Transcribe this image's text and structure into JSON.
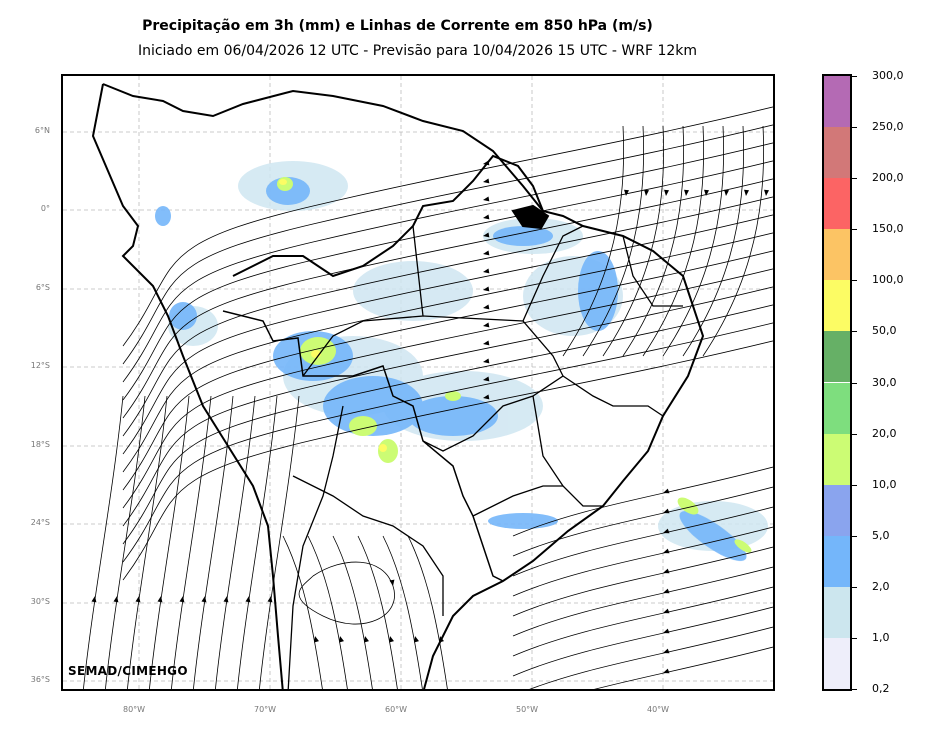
{
  "title": "Precipitação em 3h (mm) e Linhas de Corrente em 850 hPa (m/s)",
  "subtitle": "Iniciado em 06/04/2026 12 UTC - Previsão para 10/04/2026 15 UTC - WRF 12km",
  "credit": "SEMAD/CIMEHGO",
  "map": {
    "lat_ticks": [
      "6°N",
      "0°",
      "6°S",
      "12°S",
      "18°S",
      "24°S",
      "30°S",
      "36°S"
    ],
    "lon_ticks": [
      "80°W",
      "70°W",
      "60°W",
      "50°W",
      "40°W"
    ],
    "gridlines": true
  },
  "colorbar": {
    "labels": [
      "0,2",
      "1,0",
      "2,0",
      "5,0",
      "10,0",
      "20,0",
      "30,0",
      "50,0",
      "100,0",
      "150,0",
      "200,0",
      "250,0",
      "300,0"
    ],
    "colors": [
      "#eeeefa",
      "#cce6ee",
      "#74b6fa",
      "#8aa4ee",
      "#ccfc74",
      "#7ede7e",
      "#66b066",
      "#fcfc64",
      "#fcc464",
      "#fc6464",
      "#d27878",
      "#b46ab4"
    ]
  }
}
